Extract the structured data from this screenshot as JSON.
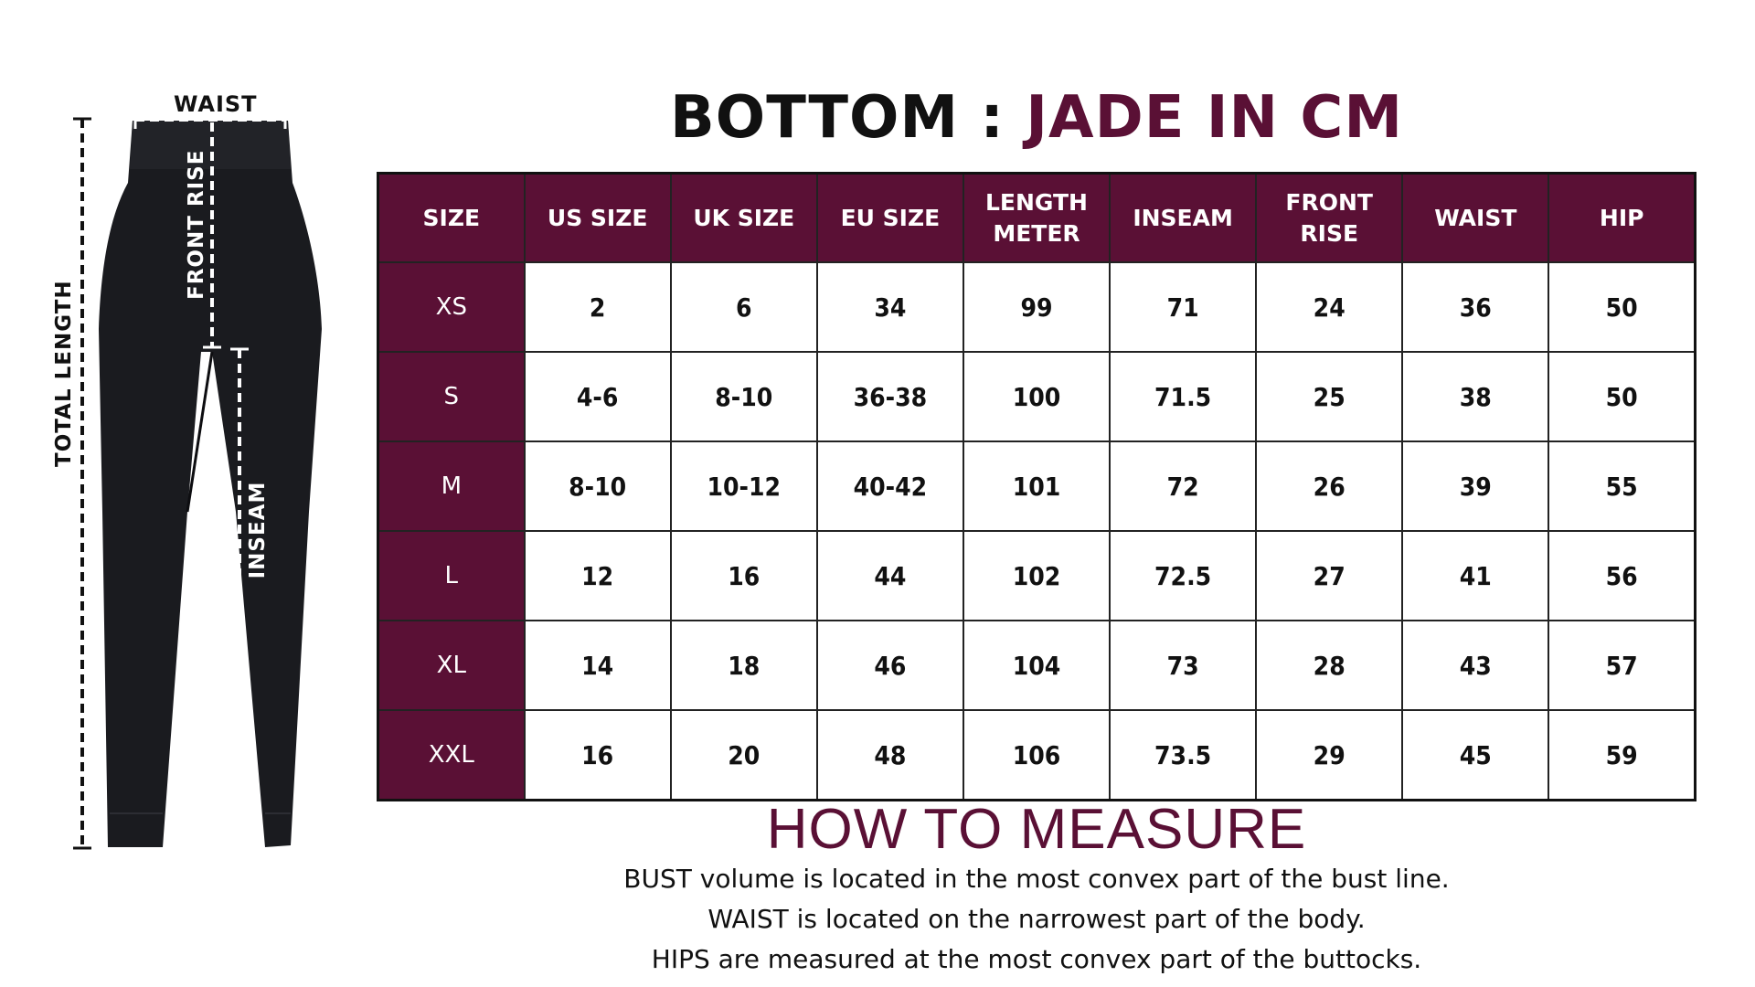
{
  "title": {
    "part1": "BOTTOM :",
    "part2": "JADE IN CM"
  },
  "diagram": {
    "labels": {
      "waist": "WAIST",
      "front_rise": "FRONT RISE",
      "total_length": "TOTAL LENGTH",
      "inseam": "INSEAM"
    }
  },
  "table": {
    "headers": [
      "SIZE",
      "US SIZE",
      "UK SIZE",
      "EU SIZE",
      "LENGTH METER",
      "INSEAM",
      "FRONT RISE",
      "WAIST",
      "HIP"
    ],
    "header_lines": [
      [
        "SIZE"
      ],
      [
        "US SIZE"
      ],
      [
        "UK SIZE"
      ],
      [
        "EU SIZE"
      ],
      [
        "LENGTH",
        "METER"
      ],
      [
        "INSEAM"
      ],
      [
        "FRONT",
        "RISE"
      ],
      [
        "WAIST"
      ],
      [
        "HIP"
      ]
    ],
    "rows": [
      [
        "XS",
        "2",
        "6",
        "34",
        "99",
        "71",
        "24",
        "36",
        "50"
      ],
      [
        "S",
        "4-6",
        "8-10",
        "36-38",
        "100",
        "71.5",
        "25",
        "38",
        "50"
      ],
      [
        "M",
        "8-10",
        "10-12",
        "40-42",
        "101",
        "72",
        "26",
        "39",
        "55"
      ],
      [
        "L",
        "12",
        "16",
        "44",
        "102",
        "72.5",
        "27",
        "41",
        "56"
      ],
      [
        "XL",
        "14",
        "18",
        "46",
        "104",
        "73",
        "28",
        "43",
        "57"
      ],
      [
        "XXL",
        "16",
        "20",
        "48",
        "106",
        "73.5",
        "29",
        "45",
        "59"
      ]
    ]
  },
  "how_to_measure": {
    "title": "HOW TO MEASURE",
    "lines": [
      "BUST volume is located in the most convex part of the bust line.",
      "WAIST is located on the narrowest part of the body.",
      "HIPS are measured at the most convex part of the buttocks."
    ]
  },
  "colors": {
    "accent": "#5a1035",
    "text": "#111111",
    "background": "#ffffff"
  }
}
